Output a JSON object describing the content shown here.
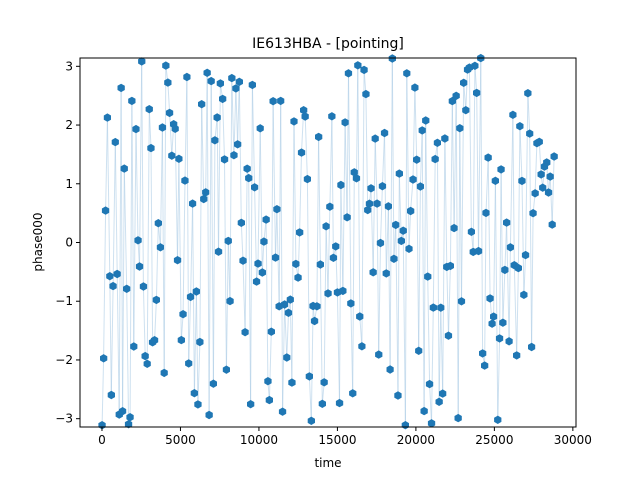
{
  "chart_data": {
    "type": "scatter",
    "title": "IE613HBA - [pointing]",
    "xlabel": "time",
    "ylabel": "phase000",
    "xlim": [
      -1400,
      30200
    ],
    "ylim": [
      -3.1416,
      3.1416
    ],
    "x_ticks": [
      0,
      5000,
      10000,
      15000,
      20000,
      25000,
      30000
    ],
    "x_tick_labels": [
      "0",
      "5000",
      "10000",
      "15000",
      "20000",
      "25000",
      "30000"
    ],
    "y_ticks": [
      -3,
      -2,
      -1,
      0,
      1,
      2,
      3
    ],
    "y_tick_labels": [
      "−3",
      "−2",
      "−1",
      "0",
      "1",
      "2",
      "3"
    ],
    "grid": false,
    "legend": "none",
    "marker": "hexagon",
    "colors": {
      "marker": "#1f77b4",
      "line": "#a6c8e4",
      "axes": "#000000",
      "background": "#ffffff"
    },
    "x_range": [
      0,
      28800
    ],
    "sampling_interval": 120,
    "series": [
      {
        "name": "",
        "approx_points": 240,
        "y_range": [
          -3.1416,
          3.1416
        ]
      }
    ]
  }
}
